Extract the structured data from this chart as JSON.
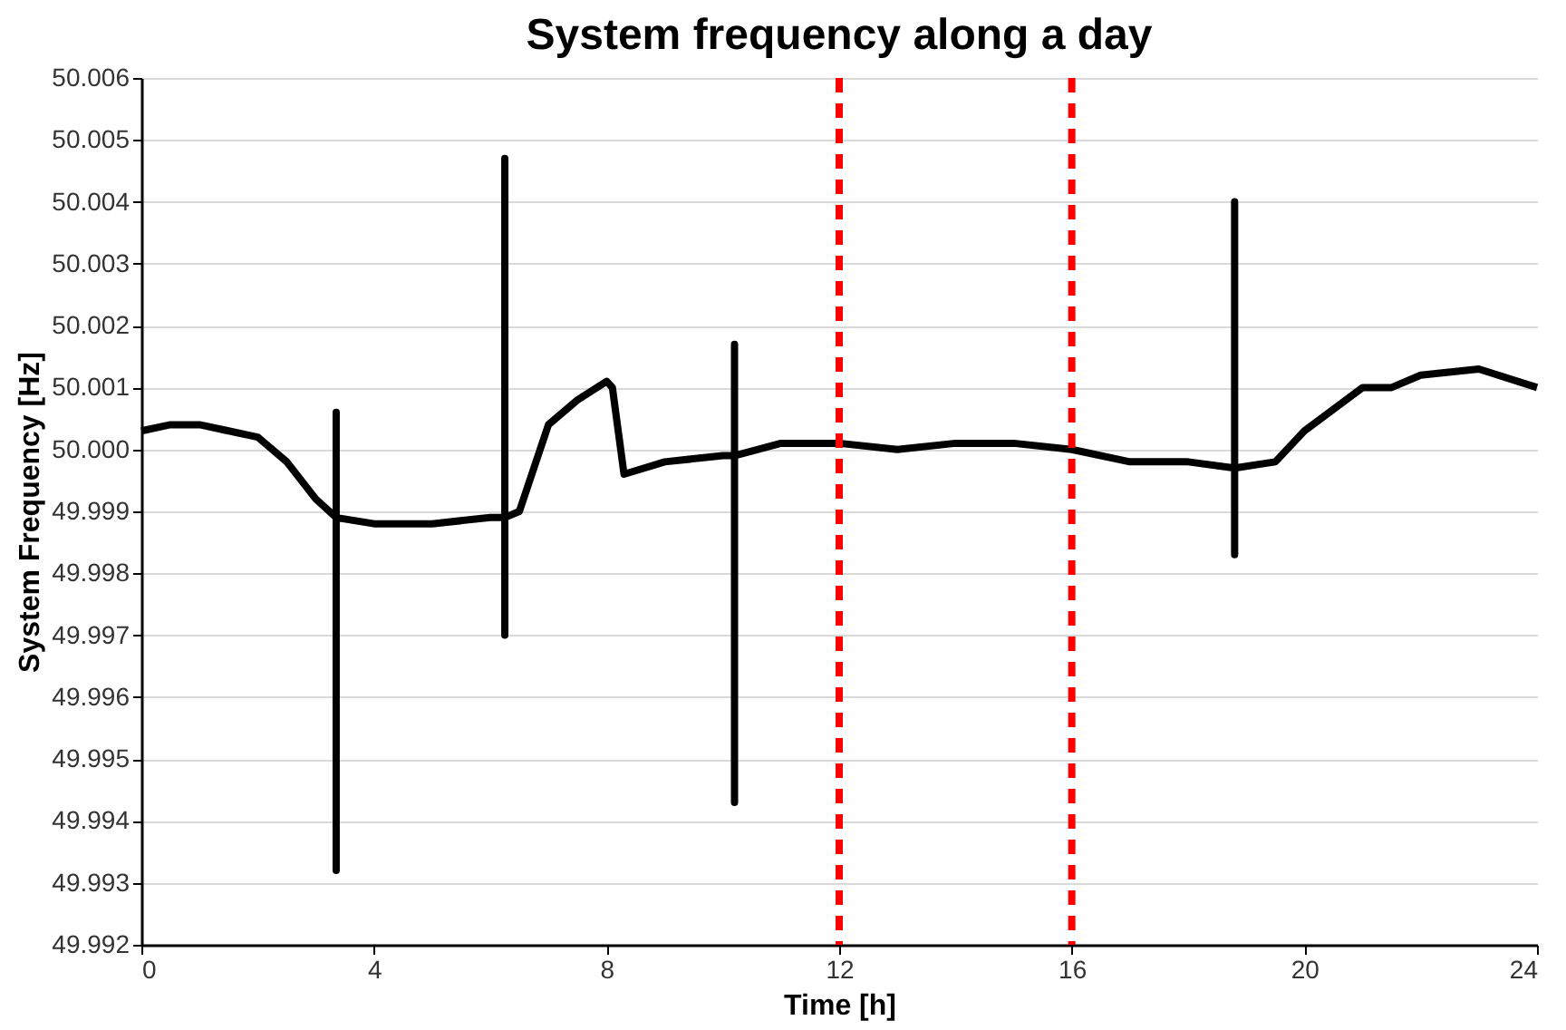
{
  "chart_data": {
    "type": "line",
    "title": "System frequency along a day",
    "xlabel": "Time [h]",
    "ylabel": "System Frequency [Hz]",
    "series": [
      {
        "color": "#000000",
        "x": [
          0,
          0.5,
          1,
          1.5,
          2,
          2.5,
          3,
          3.35,
          3.35,
          3.35,
          3.35,
          4,
          5,
          6,
          6.25,
          6.25,
          6.25,
          6.25,
          6.5,
          7,
          7.5,
          8,
          8.1,
          8.3,
          9,
          10,
          10.2,
          10.2,
          10.2,
          10.2,
          11,
          12,
          13,
          14,
          15,
          16,
          17,
          18,
          18.8,
          18.8,
          18.8,
          18.8,
          19.5,
          20,
          21,
          21.5,
          22,
          23,
          24
        ],
        "values": [
          50.0003,
          50.0004,
          50.0004,
          50.0003,
          50.0002,
          49.9998,
          49.9992,
          49.9989,
          50.0006,
          49.9932,
          49.9989,
          49.9988,
          49.9988,
          49.9989,
          49.9989,
          50.0047,
          49.997,
          49.9989,
          49.999,
          50.0004,
          50.0008,
          50.0011,
          50.001,
          49.9996,
          49.9998,
          49.9999,
          49.9999,
          50.0017,
          49.9943,
          49.9999,
          50.0001,
          50.0001,
          50.0,
          50.0001,
          50.0001,
          50.0,
          49.9998,
          49.9998,
          49.9997,
          50.004,
          49.9983,
          49.9997,
          49.9998,
          50.0003,
          50.001,
          50.001,
          50.0012,
          50.0013,
          50.001
        ]
      }
    ],
    "xlim": [
      0,
      24
    ],
    "xticks": [
      0,
      4,
      8,
      12,
      16,
      20,
      24
    ],
    "ylim": [
      49.992,
      50.006
    ],
    "yticks": [
      49.992,
      49.993,
      49.994,
      49.995,
      49.996,
      49.997,
      49.998,
      49.999,
      {
        "value": 50,
        "label": "50.000"
      },
      50.001,
      50.002,
      50.003,
      50.004,
      50.005,
      50.006
    ],
    "ref_lines": [
      {
        "axis": "x",
        "value": 12,
        "color": "#ff0000",
        "line_style": "dashed"
      },
      {
        "axis": "x",
        "value": 16,
        "color": "#ff0000",
        "line_style": "dashed"
      }
    ],
    "grid": "y",
    "marker": "none",
    "line_style": "solid"
  }
}
